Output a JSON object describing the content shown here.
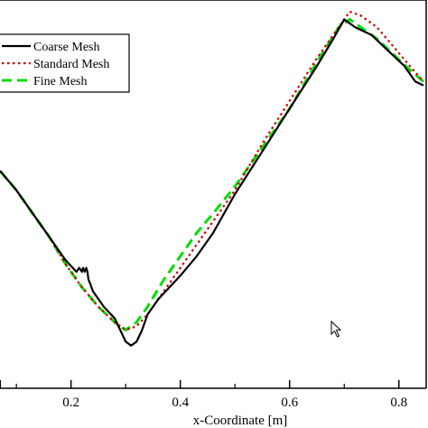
{
  "chart_data": {
    "type": "line",
    "title": "",
    "xlabel": "x-Coordinate [m]",
    "ylabel": "",
    "xlim": [
      0.07,
      0.85
    ],
    "ylim": [
      0,
      1
    ],
    "x_ticks": [
      0.2,
      0.4,
      0.6,
      0.8
    ],
    "x_tick_labels": [
      "0.2",
      "0.4",
      "0.6",
      "0.8"
    ],
    "grid": false,
    "legend_position": "top-left",
    "series": [
      {
        "name": "Coarse Mesh",
        "color": "#000000",
        "style": "solid",
        "x": [
          0.07,
          0.1,
          0.13,
          0.16,
          0.19,
          0.21,
          0.215,
          0.22,
          0.222,
          0.225,
          0.228,
          0.23,
          0.232,
          0.235,
          0.24,
          0.26,
          0.28,
          0.3,
          0.31,
          0.32,
          0.33,
          0.34,
          0.36,
          0.38,
          0.4,
          0.43,
          0.46,
          0.5,
          0.55,
          0.6,
          0.65,
          0.68,
          0.7,
          0.72,
          0.75,
          0.78,
          0.81,
          0.83,
          0.845
        ],
        "y": [
          0.56,
          0.51,
          0.45,
          0.39,
          0.33,
          0.3,
          0.31,
          0.3,
          0.31,
          0.3,
          0.31,
          0.3,
          0.28,
          0.27,
          0.25,
          0.21,
          0.18,
          0.12,
          0.11,
          0.12,
          0.15,
          0.19,
          0.23,
          0.26,
          0.29,
          0.34,
          0.4,
          0.5,
          0.61,
          0.72,
          0.83,
          0.9,
          0.95,
          0.93,
          0.91,
          0.87,
          0.83,
          0.79,
          0.78
        ]
      },
      {
        "name": "Standard Mesh",
        "color": "#cc0000",
        "style": "dotted",
        "x": [
          0.07,
          0.1,
          0.13,
          0.16,
          0.19,
          0.22,
          0.25,
          0.28,
          0.3,
          0.32,
          0.34,
          0.37,
          0.4,
          0.43,
          0.46,
          0.5,
          0.55,
          0.6,
          0.65,
          0.69,
          0.71,
          0.73,
          0.76,
          0.79,
          0.82,
          0.845
        ],
        "y": [
          0.56,
          0.51,
          0.45,
          0.39,
          0.32,
          0.26,
          0.21,
          0.17,
          0.15,
          0.16,
          0.19,
          0.25,
          0.31,
          0.37,
          0.43,
          0.51,
          0.63,
          0.74,
          0.85,
          0.93,
          0.97,
          0.96,
          0.93,
          0.88,
          0.83,
          0.79
        ]
      },
      {
        "name": "Fine Mesh",
        "color": "#00dd00",
        "style": "dashed",
        "x": [
          0.07,
          0.1,
          0.13,
          0.16,
          0.19,
          0.22,
          0.25,
          0.28,
          0.3,
          0.32,
          0.34,
          0.37,
          0.4,
          0.43,
          0.46,
          0.5,
          0.55,
          0.6,
          0.65,
          0.69,
          0.71,
          0.73,
          0.76,
          0.79,
          0.82,
          0.845
        ],
        "y": [
          0.56,
          0.51,
          0.45,
          0.39,
          0.32,
          0.26,
          0.21,
          0.17,
          0.15,
          0.17,
          0.21,
          0.28,
          0.34,
          0.4,
          0.45,
          0.52,
          0.62,
          0.72,
          0.84,
          0.93,
          0.95,
          0.93,
          0.9,
          0.86,
          0.82,
          0.79
        ]
      }
    ],
    "annotations": [
      "mouse cursor near (0.63, 0.17)"
    ]
  }
}
